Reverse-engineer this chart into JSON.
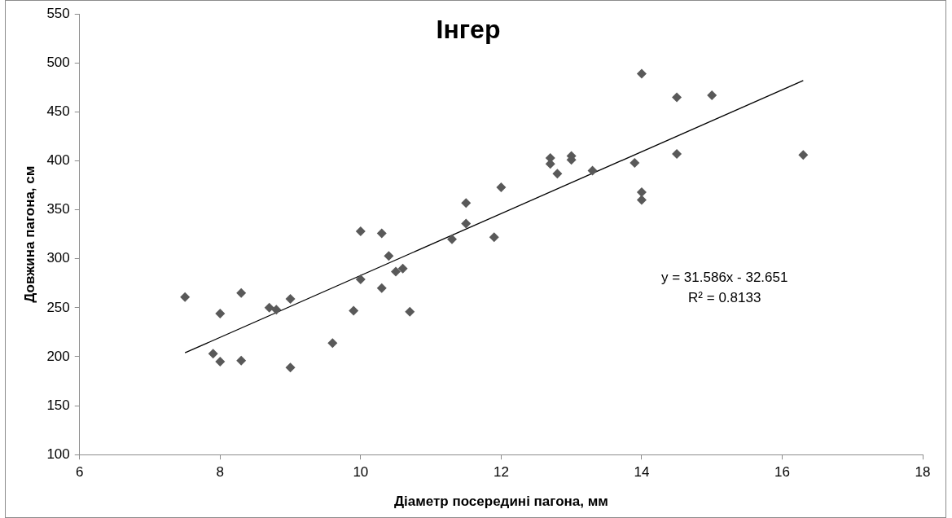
{
  "chart_data": {
    "type": "scatter",
    "title": "Інгер",
    "xlabel": "Діаметр посередині пагона, мм",
    "ylabel": "Довжина пагона, см",
    "xlim": [
      6,
      18
    ],
    "xticks": [
      6,
      8,
      10,
      12,
      14,
      16,
      18
    ],
    "ylim": [
      100,
      550
    ],
    "yticks": [
      100,
      150,
      200,
      250,
      300,
      350,
      400,
      450,
      500,
      550
    ],
    "grid": false,
    "legend": false,
    "marker": "diamond",
    "annotations": [
      "y = 31.586x - 32.651",
      "R² = 0.8133"
    ],
    "series": [
      {
        "color": "#595959",
        "x": [
          7.5,
          7.9,
          8,
          8,
          8.3,
          8.3,
          8.7,
          8.8,
          9,
          9,
          9.6,
          9.9,
          10,
          10,
          10.3,
          10.3,
          10.4,
          10.5,
          10.6,
          10.7,
          11.3,
          11.5,
          11.5,
          11.9,
          12,
          12.7,
          12.7,
          12.8,
          13,
          13,
          13.3,
          13.9,
          14,
          14,
          14,
          14.5,
          14.5,
          15,
          16.3
        ],
        "values": [
          261,
          203,
          195,
          244,
          265,
          196,
          250,
          248,
          259,
          189,
          214,
          247,
          328,
          279,
          326,
          270,
          303,
          287,
          290,
          246,
          320,
          357,
          336,
          322,
          373,
          403,
          397,
          387,
          405,
          401,
          390,
          398,
          489,
          368,
          360,
          465,
          407,
          467,
          406
        ]
      },
      {
        "type": "line",
        "color": "#000000",
        "marker": "none",
        "x": [
          7.5,
          16.3
        ],
        "values": [
          204,
          482
        ]
      }
    ]
  }
}
